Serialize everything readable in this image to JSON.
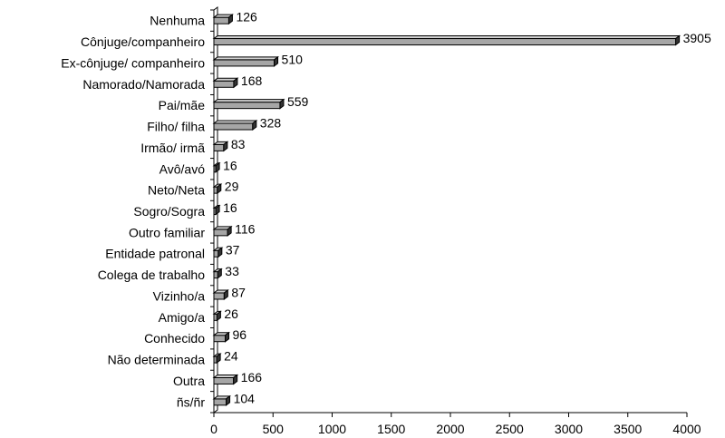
{
  "chart_data": {
    "type": "bar",
    "orientation": "horizontal",
    "categories": [
      "Nenhuma",
      "Cônjuge/companheiro",
      "Ex-cônjuge/ companheiro",
      "Namorado/Namorada",
      "Pai/mãe",
      "Filho/ filha",
      "Irmão/ irmã",
      "Avô/avó",
      "Neto/Neta",
      "Sogro/Sogra",
      "Outro familiar",
      "Entidade patronal",
      "Colega de trabalho",
      "Vizinho/a",
      "Amigo/a",
      "Conhecido",
      "Não determinada",
      "Outra",
      "ñs/ñr"
    ],
    "values": [
      126,
      3905,
      510,
      168,
      559,
      328,
      83,
      16,
      29,
      16,
      116,
      37,
      33,
      87,
      26,
      96,
      24,
      166,
      104
    ],
    "xlim": [
      0,
      4000
    ],
    "xticks": [
      0,
      500,
      1000,
      1500,
      2000,
      2500,
      3000,
      3500,
      4000
    ],
    "title": "",
    "xlabel": "",
    "ylabel": "",
    "grid": false,
    "bar_color": "#a6a6a6",
    "bar_end_color": "#333333"
  }
}
